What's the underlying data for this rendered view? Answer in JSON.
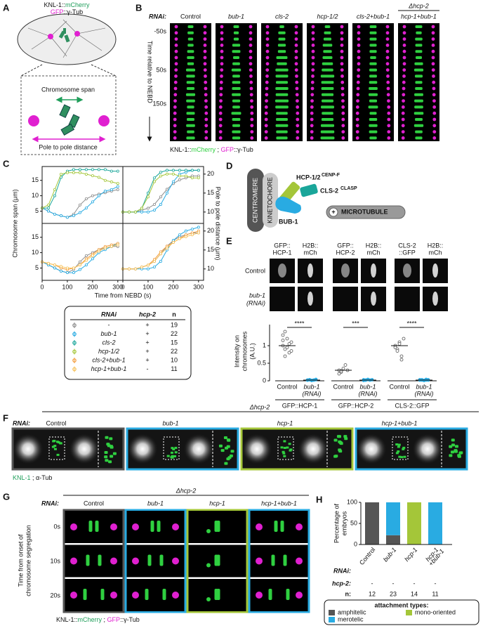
{
  "panel_a": {
    "letter": "A",
    "marker_labels": [
      [
        "KNL-1::",
        "mCherry"
      ],
      [
        "GFP",
        "::γ-Tub"
      ]
    ],
    "span_label": "Chromosome span",
    "pole_label": "Pole to pole distance"
  },
  "panel_b": {
    "letter": "B",
    "rnai_label": "RNAi:",
    "conditions": [
      "Control",
      "bub-1",
      "cls-2",
      "hcp-1/2",
      "cls-2+bub-1",
      "hcp-1+bub-1"
    ],
    "deletion_label": "Δhcp-2",
    "times": [
      "-50s",
      "50s",
      "150s"
    ],
    "time_axis_label": "Time relative to NEBD",
    "legend": [
      "KNL-1::",
      "mCherry",
      " ; ",
      "GFP",
      "::γ-Tub"
    ]
  },
  "panel_c": {
    "letter": "C",
    "type": "line",
    "y_label": "Chromosome span (μm)",
    "y2_label": "Pole to pole distance (μm)",
    "x_label": "Time from NEBD (s)",
    "xlim": [
      0,
      320
    ],
    "xticks": [
      0,
      100,
      200,
      300
    ],
    "ylim": [
      1,
      19.5
    ],
    "yticks": [
      5,
      10,
      15
    ],
    "y2lim": [
      7,
      22
    ],
    "y2ticks": [
      10,
      15,
      20
    ],
    "plots": [
      {
        "axis": "y",
        "x": [
          0,
          25,
          50,
          75,
          100,
          125,
          150,
          175,
          200,
          225,
          250,
          275,
          300
        ],
        "series": [
          {
            "color": "#8c8c8c",
            "values": [
              6,
              5,
              4,
              3.5,
              3,
              4,
              7,
              9,
              10,
              10.5,
              11,
              11.5,
              12
            ]
          },
          {
            "color": "#29abe2",
            "values": [
              6,
              5,
              4,
              3.5,
              3,
              3.5,
              4.5,
              6,
              8,
              10,
              11.5,
              12,
              13
            ]
          },
          {
            "color": "#1aa69a",
            "values": [
              6,
              6,
              10,
              16,
              18,
              18.5,
              18.5,
              18.5,
              18.5,
              18.5,
              18.5,
              18,
              18
            ]
          },
          {
            "color": "#a4c639",
            "values": [
              6,
              7,
              12,
              17,
              17.5,
              17.5,
              17.5,
              17,
              16.5,
              16,
              15,
              14.5,
              14
            ]
          }
        ]
      },
      {
        "axis": "y2",
        "x": [
          0,
          25,
          50,
          75,
          100,
          125,
          150,
          175,
          200,
          225,
          250,
          275,
          300
        ],
        "series": [
          {
            "color": "#8c8c8c",
            "values": [
              10,
              10,
              10,
              10.5,
              11,
              12,
              14,
              16,
              17.5,
              18.5,
              19,
              19.5,
              19.5
            ]
          },
          {
            "color": "#29abe2",
            "values": [
              10,
              10,
              10,
              10,
              10,
              10.5,
              12,
              15,
              18,
              20,
              20.5,
              21,
              21
            ]
          },
          {
            "color": "#1aa69a",
            "values": [
              10,
              10,
              10,
              11,
              15,
              19,
              20.5,
              21,
              21,
              21,
              21,
              21,
              21
            ]
          },
          {
            "color": "#a4c639",
            "values": [
              10,
              10,
              10,
              11,
              14,
              18,
              19.5,
              20,
              20,
              19.5,
              19.5,
              19,
              19
            ]
          }
        ]
      },
      {
        "axis": "y",
        "x": [
          0,
          25,
          50,
          75,
          100,
          125,
          150,
          175,
          200,
          225,
          250,
          275,
          300
        ],
        "series": [
          {
            "color": "#8c8c8c",
            "values": [
              7,
              6,
              5,
              4,
              3.5,
              4.5,
              7,
              9,
              10,
              11,
              11.5,
              12,
              12
            ]
          },
          {
            "color": "#29abe2",
            "values": [
              7,
              6,
              5,
              4,
              3.5,
              3.5,
              4.5,
              6,
              8,
              10,
              11,
              12,
              13
            ]
          },
          {
            "color": "#f39c3c",
            "values": [
              7,
              6.5,
              6,
              5,
              4.5,
              5,
              6,
              8,
              9.5,
              11,
              12,
              12.5,
              13
            ]
          },
          {
            "color": "#f6c25a",
            "values": [
              7,
              6.5,
              6,
              5.5,
              5,
              5,
              6,
              7.5,
              9,
              10.5,
              11.5,
              12,
              12.5
            ]
          }
        ]
      },
      {
        "axis": "y2",
        "x": [
          0,
          25,
          50,
          75,
          100,
          125,
          150,
          175,
          200,
          225,
          250,
          275,
          300
        ],
        "series": [
          {
            "color": "#8c8c8c",
            "values": [
              10,
              10,
              10,
              10.5,
              11,
              12,
              14,
              16,
              17.5,
              18.5,
              19,
              19.5,
              19.5
            ]
          },
          {
            "color": "#29abe2",
            "values": [
              10,
              10,
              10,
              10,
              10,
              10.5,
              12,
              15,
              17.5,
              19,
              20,
              20.5,
              21
            ]
          },
          {
            "color": "#f39c3c",
            "values": [
              10,
              10,
              10,
              10.5,
              11,
              12.5,
              14.5,
              16,
              17,
              18,
              19,
              19.5,
              20
            ]
          },
          {
            "color": "#f6c25a",
            "values": [
              10,
              10,
              10,
              10.5,
              11,
              12,
              14,
              15.5,
              17,
              18,
              18.5,
              19,
              19.5
            ]
          }
        ]
      }
    ],
    "legend": {
      "headers": [
        "RNAi",
        "hcp-2",
        "n"
      ],
      "rows": [
        {
          "rnai": "-",
          "hcp2": "+",
          "n": 19,
          "color": "#8c8c8c"
        },
        {
          "rnai": "bub-1",
          "hcp2": "+",
          "n": 22,
          "color": "#29abe2"
        },
        {
          "rnai": "cls-2",
          "hcp2": "+",
          "n": 15,
          "color": "#1aa69a"
        },
        {
          "rnai": "hcp-1/2",
          "hcp2": "+",
          "n": 22,
          "color": "#a4c639"
        },
        {
          "rnai": "cls-2+bub-1",
          "hcp2": "+",
          "n": 10,
          "color": "#f39c3c"
        },
        {
          "rnai": "hcp-1+bub-1",
          "hcp2": "-",
          "n": 11,
          "color": "#f6c25a"
        }
      ]
    }
  },
  "panel_d": {
    "letter": "D",
    "centromere": "CENTROMERE",
    "kinetochore": "KINETOCHORE",
    "hcp": "HCP-1/2",
    "hcp_sup": "CENP-F",
    "cls": "CLS-2",
    "cls_sup": "CLASP",
    "bub": "BUB-1",
    "plus": "+",
    "microtubule": "MICROTUBULE"
  },
  "panel_e": {
    "letter": "E",
    "image_headers": [
      [
        "GFP::",
        "HCP-1"
      ],
      [
        "H2B::",
        "mCh"
      ],
      [
        "GFP::",
        "HCP-2"
      ],
      [
        "H2B::",
        "mCh"
      ],
      [
        "CLS-2",
        "::GFP"
      ],
      [
        "H2B::",
        "mCh"
      ]
    ],
    "rows": [
      [
        "Control"
      ],
      [
        "bub-1",
        "(RNAi)"
      ]
    ],
    "plot": {
      "type": "dot",
      "y_label": [
        "Intensity on",
        "chromosomes",
        "(A.U.)"
      ],
      "ylim": [
        0,
        1.6
      ],
      "yticks": [
        0,
        0.5,
        1
      ],
      "groups": [
        {
          "name": "GFP::HCP-1",
          "significance": "****",
          "conditions": [
            [
              "Control"
            ],
            [
              "bub-1",
              "(RNAi)"
            ]
          ],
          "values": [
            [
              1.0,
              0.9,
              1.2,
              0.8,
              1.1,
              1.3,
              0.7,
              0.95,
              1.05,
              0.85,
              1.15,
              1.4
            ],
            [
              0.02,
              0.03,
              0.01,
              0.02,
              0.04,
              0.02,
              0.03,
              0.01,
              0.02,
              0.03
            ]
          ],
          "medians": [
            1.0,
            0.02
          ]
        },
        {
          "name": "GFP::HCP-2",
          "significance": "***",
          "conditions": [
            [
              "Control"
            ],
            [
              "bub-1",
              "(RNAi)"
            ]
          ],
          "values": [
            [
              0.3,
              0.25,
              0.35,
              0.45,
              0.3,
              0.2,
              0.28
            ],
            [
              0.03,
              0.02,
              0.04,
              0.02,
              0.03,
              0.01,
              0.02
            ]
          ],
          "medians": [
            0.3,
            0.02
          ]
        },
        {
          "name": "CLS-2::GFP",
          "significance": "****",
          "conditions": [
            [
              "Control"
            ],
            [
              "bub-1",
              "(RNAi)"
            ]
          ],
          "values": [
            [
              1.0,
              0.9,
              1.1,
              0.7,
              1.2,
              0.95,
              0.85,
              1.05,
              0.6
            ],
            [
              0.02,
              0.03,
              0.01,
              0.04,
              0.02,
              0.03,
              0.02,
              0.01,
              0.02,
              0.03
            ]
          ],
          "medians": [
            1.0,
            0.02
          ]
        }
      ]
    }
  },
  "panel_f": {
    "letter": "F",
    "deletion_label": "Δhcp-2",
    "rnai_label": "RNAi:",
    "conditions": [
      "Control",
      "bub-1",
      "hcp-1",
      "hcp-1+bub-1"
    ],
    "frame_colors": [
      "#555555",
      "#29abe2",
      "#a4c639",
      "#29abe2"
    ],
    "legend": [
      "KNL-1",
      " ; α-Tub"
    ]
  },
  "panel_g": {
    "letter": "G",
    "deletion_label": "Δhcp-2",
    "rnai_label": "RNAi:",
    "conditions": [
      "Control",
      "bub-1",
      "hcp-1",
      "hcp-1+bub-1"
    ],
    "frame_colors": [
      "#555555",
      "#29abe2",
      "#a4c639",
      "#29abe2"
    ],
    "times": [
      "0s",
      "10s",
      "20s"
    ],
    "time_axis_label": [
      "Time from onset of",
      "chromosome segregation"
    ],
    "legend": [
      "KNL-1::",
      "mCherry",
      " ; ",
      "GFP",
      "::γ-Tub"
    ]
  },
  "panel_h": {
    "letter": "H",
    "type": "stacked_bar",
    "y_label": [
      "Percentage of",
      "embryos"
    ],
    "ylim": [
      0,
      100
    ],
    "yticks": [
      0,
      50,
      100
    ],
    "categories": [
      [
        "Control"
      ],
      [
        "bub-1"
      ],
      [
        "hcp-1"
      ],
      [
        "hcp-1",
        "+bub-1"
      ]
    ],
    "series": [
      {
        "name": "amphitelic",
        "color": "#555555",
        "values": [
          100,
          22,
          0,
          0
        ]
      },
      {
        "name": "mono-oriented",
        "color": "#a4c639",
        "values": [
          0,
          0,
          100,
          0
        ]
      },
      {
        "name": "merotelic",
        "color": "#29abe2",
        "values": [
          0,
          78,
          0,
          100
        ]
      }
    ],
    "rnai_label": "RNAi:",
    "hcp2_label": "hcp-2:",
    "hcp2": [
      "-",
      "-",
      "-",
      "-"
    ],
    "n_label": "n:",
    "n": [
      12,
      23,
      14,
      11
    ],
    "legend_title": "attachment types:"
  }
}
